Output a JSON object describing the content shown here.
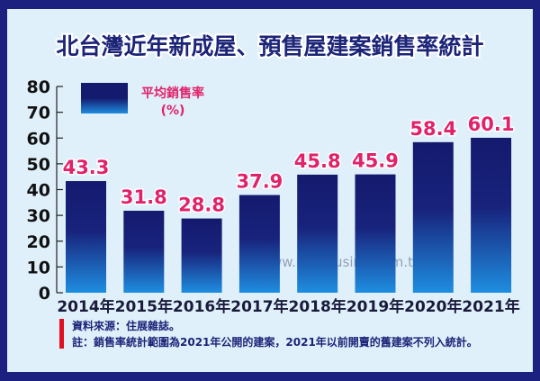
{
  "chart_data": {
    "type": "bar",
    "title": "北台灣近年新成屋、預售屋建案銷售率統計",
    "categories": [
      "2014年",
      "2015年",
      "2016年",
      "2017年",
      "2018年",
      "2019年",
      "2020年",
      "2021年"
    ],
    "values": [
      43.3,
      31.8,
      28.8,
      37.9,
      45.8,
      45.9,
      58.4,
      60.1
    ],
    "value_labels": [
      "43.3",
      "31.8",
      "28.8",
      "37.9",
      "45.8",
      "45.9",
      "58.4",
      "60.1"
    ],
    "legend": {
      "label": "平均銷售率",
      "unit": "(%)",
      "placement": "top-left"
    },
    "ylim": [
      0,
      80
    ],
    "yticks": [
      "0",
      "10",
      "20",
      "30",
      "40",
      "50",
      "60",
      "70",
      "80"
    ],
    "xlabel": "",
    "ylabel": "",
    "grid": false,
    "colors": {
      "bar_top": "#141a6e",
      "bar_bottom": "#1e8ee0",
      "value_label": "#e0226a",
      "frame": "#1c2180",
      "background": "#dff0fa",
      "note_bar": "#e01020"
    }
  },
  "notes": {
    "source": "資料來源：住展雜誌。",
    "footnote": "註：銷售率統計範圍為2021年公開的建案，2021年以前開賣的舊建案不列入統計。"
  },
  "watermark": "www.myhousing.com.tw"
}
